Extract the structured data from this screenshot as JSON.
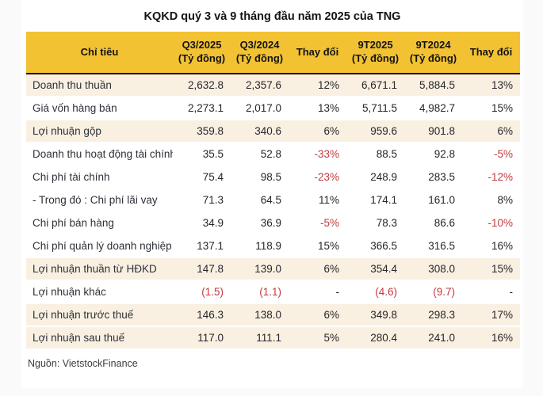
{
  "colors": {
    "header_bg": "#F2C233",
    "highlight_row_bg": "#FAF0E2",
    "plain_row_bg": "#FFFFFF",
    "negative_text": "#C13A3E",
    "body_text": "#26262B",
    "header_underline": "#181818",
    "outer_bg": "#FAFAFA"
  },
  "chart_data": {
    "type": "table",
    "title": "KQKD quý 3 và 9 tháng đầu năm 2025 của TNG",
    "source": "Nguồn: VietstockFinance",
    "columns": [
      {
        "label": "Chỉ tiêu",
        "sub": ""
      },
      {
        "label": "Q3/2025",
        "sub": "(Tỷ đồng)"
      },
      {
        "label": "Q3/2024",
        "sub": "(Tỷ đồng)"
      },
      {
        "label": "Thay đổi",
        "sub": ""
      },
      {
        "label": "9T2025",
        "sub": "(Tỷ đồng)"
      },
      {
        "label": "9T2024",
        "sub": "(Tỷ đồng)"
      },
      {
        "label": "Thay đổi",
        "sub": ""
      }
    ],
    "rows": [
      {
        "cells": [
          "Doanh thu thuần",
          "2,632.8",
          "2,357.6",
          "12%",
          "6,671.1",
          "5,884.5",
          "13%"
        ],
        "highlight": true
      },
      {
        "cells": [
          "Giá vốn hàng bán",
          "2,273.1",
          "2,017.0",
          "13%",
          "5,711.5",
          "4,982.7",
          "15%"
        ],
        "highlight": false
      },
      {
        "cells": [
          "Lợi nhuận gộp",
          "359.8",
          "340.6",
          "6%",
          "959.6",
          "901.8",
          "6%"
        ],
        "highlight": true
      },
      {
        "cells": [
          "Doanh thu hoạt động tài chính",
          "35.5",
          "52.8",
          "-33%",
          "88.5",
          "92.8",
          "-5%"
        ],
        "highlight": false
      },
      {
        "cells": [
          "Chi phí tài chính",
          "75.4",
          "98.5",
          "-23%",
          "248.9",
          "283.5",
          "-12%"
        ],
        "highlight": false
      },
      {
        "cells": [
          "- Trong đó : Chi phí lãi vay",
          "71.3",
          "64.5",
          "11%",
          "174.1",
          "161.0",
          "8%"
        ],
        "highlight": false
      },
      {
        "cells": [
          "Chi phí bán hàng",
          "34.9",
          "36.9",
          "-5%",
          "78.3",
          "86.6",
          "-10%"
        ],
        "highlight": false
      },
      {
        "cells": [
          "Chi phí quản lý doanh nghiệp",
          "137.1",
          "118.9",
          "15%",
          "366.5",
          "316.5",
          "16%"
        ],
        "highlight": false
      },
      {
        "cells": [
          "Lợi nhuận thuần từ HĐKD",
          "147.8",
          "139.0",
          "6%",
          "354.4",
          "308.0",
          "15%"
        ],
        "highlight": true
      },
      {
        "cells": [
          "Lợi nhuận khác",
          "(1.5)",
          "(1.1)",
          "-",
          "(4.6)",
          "(9.7)",
          "-"
        ],
        "highlight": false
      },
      {
        "cells": [
          "Lợi nhuận trước thuế",
          "146.3",
          "138.0",
          "6%",
          "349.8",
          "298.3",
          "17%"
        ],
        "highlight": true
      },
      {
        "cells": [
          "Lợi nhuận sau thuế",
          "117.0",
          "111.1",
          "5%",
          "280.4",
          "241.0",
          "16%"
        ],
        "highlight": true
      }
    ]
  }
}
